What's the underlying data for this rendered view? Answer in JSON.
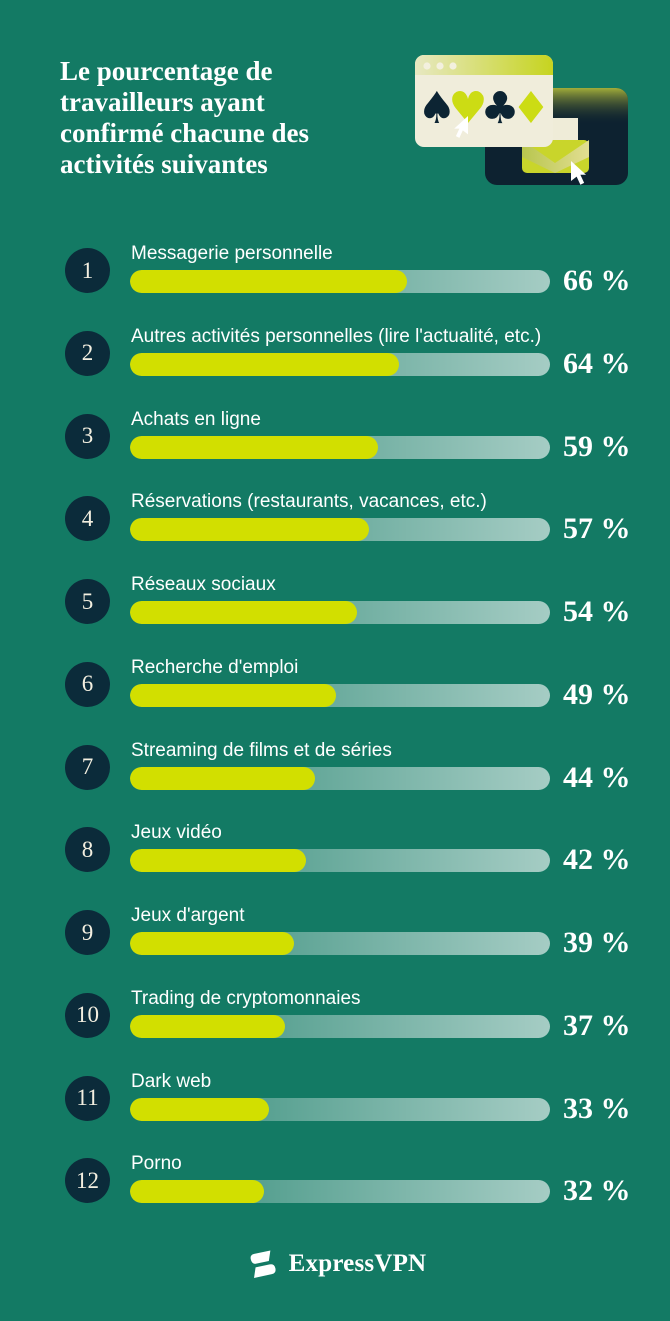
{
  "colors": {
    "background": "#137A64",
    "bar_fill": "#D2DF00",
    "bar_track_start": "rgba(255,255,255,0.14)",
    "bar_track_end": "rgba(255,255,255,0.62)",
    "badge_bg": "#0B2B3A",
    "badge_text": "#F3EFE0",
    "text": "#FFFFFF",
    "illustration_navy": "#0D2230",
    "illustration_cream": "#F0EDDB",
    "illustration_lime": "#C9D52B"
  },
  "header": {
    "title_lines": [
      "Le pourcentage de",
      "travailleurs ayant",
      "confirmé chacune des",
      "activités suivantes"
    ]
  },
  "illustration": {
    "icons": [
      "browser-window-icon",
      "spade-icon",
      "heart-icon",
      "club-icon",
      "diamond-icon",
      "cursor-icon",
      "envelope-icon"
    ],
    "suits": {
      "spade": "♠",
      "heart": "♥",
      "club": "♣",
      "diamond": "♦"
    }
  },
  "chart_data": {
    "type": "bar",
    "orientation": "horizontal",
    "title": "Le pourcentage de travailleurs ayant confirmé chacune des activités suivantes",
    "value_unit": "%",
    "xlim": [
      0,
      100
    ],
    "grid": false,
    "legend": false,
    "categories": [
      "Messagerie personnelle",
      "Autres activités personnelles (lire l'actualité, etc.)",
      "Achats en ligne",
      "Réservations (restaurants, vacances, etc.)",
      "Réseaux sociaux",
      "Recherche d'emploi",
      "Streaming de films et de séries",
      "Jeux vidéo",
      "Jeux d'argent",
      "Trading de cryptomonnaies",
      "Dark web",
      "Porno"
    ],
    "values": [
      66,
      64,
      59,
      57,
      54,
      49,
      44,
      42,
      39,
      37,
      33,
      32
    ],
    "rows": [
      {
        "rank": "1",
        "label": "Messagerie personnelle",
        "value": 66,
        "value_label": "66 %"
      },
      {
        "rank": "2",
        "label": "Autres activités personnelles (lire l'actualité, etc.)",
        "value": 64,
        "value_label": "64 %"
      },
      {
        "rank": "3",
        "label": "Achats en ligne",
        "value": 59,
        "value_label": "59 %"
      },
      {
        "rank": "4",
        "label": "Réservations (restaurants, vacances, etc.)",
        "value": 57,
        "value_label": "57 %"
      },
      {
        "rank": "5",
        "label": "Réseaux sociaux",
        "value": 54,
        "value_label": "54 %"
      },
      {
        "rank": "6",
        "label": "Recherche d'emploi",
        "value": 49,
        "value_label": "49 %"
      },
      {
        "rank": "7",
        "label": "Streaming de films et de séries",
        "value": 44,
        "value_label": "44 %"
      },
      {
        "rank": "8",
        "label": "Jeux vidéo",
        "value": 42,
        "value_label": "42 %"
      },
      {
        "rank": "9",
        "label": "Jeux d'argent",
        "value": 39,
        "value_label": "39 %"
      },
      {
        "rank": "10",
        "label": "Trading de cryptomonnaies",
        "value": 37,
        "value_label": "37 %"
      },
      {
        "rank": "11",
        "label": "Dark web",
        "value": 33,
        "value_label": "33 %"
      },
      {
        "rank": "12",
        "label": "Porno",
        "value": 32,
        "value_label": "32 %"
      }
    ]
  },
  "footer": {
    "brand": "ExpressVPN"
  }
}
